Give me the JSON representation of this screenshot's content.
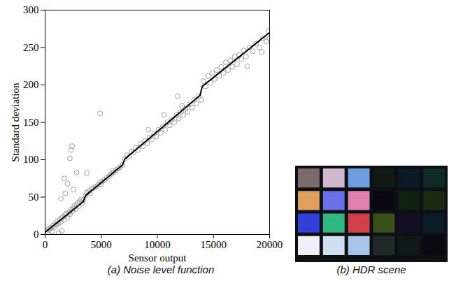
{
  "chart_data": {
    "type": "scatter",
    "xlabel": "Sensor output",
    "ylabel": "Standard deviation",
    "caption": "(a) Noise level function",
    "xlim": [
      0,
      20000
    ],
    "ylim": [
      0,
      300
    ],
    "xticks": [
      0,
      5000,
      10000,
      15000,
      20000
    ],
    "yticks": [
      0,
      50,
      100,
      150,
      200,
      250,
      300
    ],
    "grid": false,
    "series": [
      {
        "type": "scatter",
        "marker": "circle",
        "color": "#999999",
        "x": [
          100,
          200,
          300,
          400,
          500,
          600,
          700,
          800,
          900,
          1000,
          1100,
          1200,
          1300,
          1400,
          1500,
          1600,
          1700,
          1800,
          1900,
          2000,
          2100,
          2200,
          2300,
          2400,
          2500,
          2600,
          2700,
          2800,
          2900,
          3000,
          3100,
          3200,
          3300,
          3400,
          1200,
          1500,
          2400,
          2300,
          2200,
          1700,
          2800,
          2000,
          1400,
          4900,
          3700,
          2500,
          1800,
          3600,
          3700,
          3900,
          4100,
          4300,
          4500,
          4700,
          4900,
          5100,
          5300,
          5500,
          5700,
          5900,
          6100,
          6300,
          6500,
          6700,
          6900,
          4000,
          5000,
          6000,
          7100,
          7300,
          7500,
          7700,
          7900,
          8100,
          8300,
          8500,
          8700,
          8900,
          9100,
          9300,
          9500,
          9700,
          9900,
          10100,
          10300,
          10500,
          10700,
          10900,
          11100,
          11300,
          11500,
          11700,
          11900,
          12100,
          12300,
          12500,
          12700,
          12900,
          13100,
          13300,
          13500,
          13700,
          13900,
          11800,
          12200,
          10600,
          9200,
          14100,
          14300,
          14500,
          14700,
          14900,
          15100,
          15300,
          15500,
          15700,
          15900,
          16100,
          16300,
          16500,
          16700,
          16900,
          17100,
          17300,
          17500,
          17700,
          17900,
          18200,
          18500,
          18800,
          19100,
          19400,
          19700,
          19900,
          20000,
          19300,
          18000
        ],
        "values": [
          5,
          2,
          8,
          6,
          9,
          4,
          12,
          10,
          14,
          13,
          18,
          15,
          20,
          17,
          22,
          24,
          20,
          26,
          28,
          23,
          30,
          27,
          33,
          31,
          35,
          38,
          34,
          40,
          42,
          38,
          44,
          47,
          42,
          46,
          2,
          5,
          118,
          113,
          102,
          75,
          83,
          68,
          48,
          162,
          82,
          60,
          55,
          52,
          56,
          58,
          61,
          62,
          64,
          66,
          70,
          71,
          73,
          76,
          78,
          81,
          83,
          86,
          88,
          90,
          93,
          55,
          67,
          85,
          101,
          106,
          104,
          111,
          110,
          116,
          113,
          121,
          118,
          125,
          122,
          130,
          127,
          135,
          131,
          140,
          136,
          145,
          140,
          150,
          146,
          154,
          150,
          160,
          155,
          164,
          160,
          168,
          164,
          174,
          170,
          180,
          175,
          185,
          180,
          185,
          172,
          160,
          140,
          205,
          198,
          212,
          203,
          216,
          208,
          220,
          212,
          224,
          216,
          230,
          220,
          233,
          224,
          238,
          228,
          240,
          234,
          246,
          238,
          250,
          245,
          255,
          250,
          262,
          258,
          272,
          262,
          244,
          225
        ]
      },
      {
        "type": "line",
        "line_style": "solid",
        "color": "#000000",
        "x": [
          0,
          3400,
          3600,
          6900,
          7100,
          13800,
          14000,
          20000
        ],
        "values": [
          3,
          44,
          52,
          93,
          101,
          186,
          198,
          270
        ]
      }
    ]
  },
  "hdr_scene": {
    "caption": "(b) HDR scene",
    "patches": [
      [
        "#7a6a6a",
        "#d2b8cc",
        "#6f9be0",
        "#0f1a14",
        "#0c1a28",
        "#0d2a26"
      ],
      [
        "#e0a060",
        "#6a6ee8",
        "#e080b0",
        "#0a0810",
        "#0e2010",
        "#1a2a10"
      ],
      [
        "#3040d8",
        "#30b880",
        "#d04048",
        "#3a5018",
        "#140e24",
        "#0a1c2a"
      ],
      [
        "#f0f0f8",
        "#d0e0f0",
        "#a8c4e8",
        "#202828",
        "#101818",
        "#080c10"
      ]
    ]
  }
}
